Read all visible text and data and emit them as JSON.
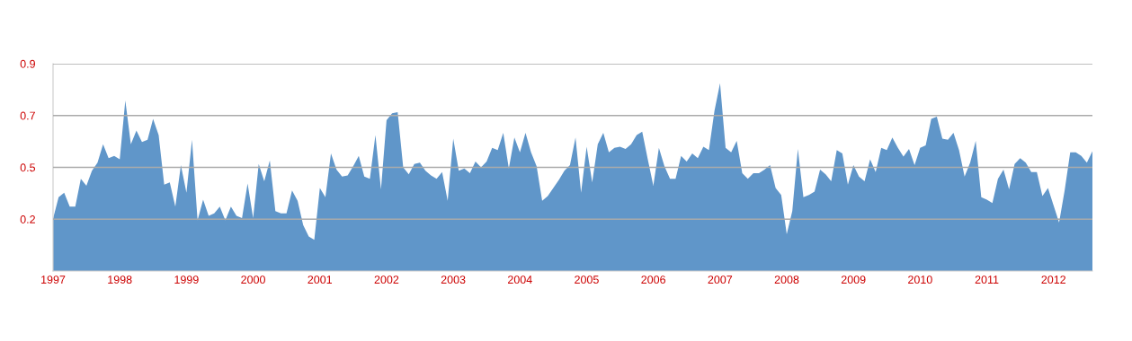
{
  "chart_data": {
    "type": "area",
    "x": [
      "1997-01",
      "1997-02",
      "1997-03",
      "1997-04",
      "1997-05",
      "1997-06",
      "1997-07",
      "1997-08",
      "1997-09",
      "1997-10",
      "1997-11",
      "1997-12",
      "1998-01",
      "1998-02",
      "1998-03",
      "1998-04",
      "1998-05",
      "1998-06",
      "1998-07",
      "1998-08",
      "1998-09",
      "1998-10",
      "1998-11",
      "1998-12",
      "1999-01",
      "1999-02",
      "1999-03",
      "1999-04",
      "1999-05",
      "1999-06",
      "1999-07",
      "1999-08",
      "1999-09",
      "1999-10",
      "1999-11",
      "1999-12",
      "2000-01",
      "2000-02",
      "2000-03",
      "2000-04",
      "2000-05",
      "2000-06",
      "2000-07",
      "2000-08",
      "2000-09",
      "2000-10",
      "2000-11",
      "2000-12",
      "2001-01",
      "2001-02",
      "2001-03",
      "2001-04",
      "2001-05",
      "2001-06",
      "2001-07",
      "2001-08",
      "2001-09",
      "2001-10",
      "2001-11",
      "2001-12",
      "2002-01",
      "2002-02",
      "2002-03",
      "2002-04",
      "2002-05",
      "2002-06",
      "2002-07",
      "2002-08",
      "2002-09",
      "2002-10",
      "2002-11",
      "2002-12",
      "2003-01",
      "2003-02",
      "2003-03",
      "2003-04",
      "2003-05",
      "2003-06",
      "2003-07",
      "2003-08",
      "2003-09",
      "2003-10",
      "2003-11",
      "2003-12",
      "2004-01",
      "2004-02",
      "2004-03",
      "2004-04",
      "2004-05",
      "2004-06",
      "2004-07",
      "2004-08",
      "2004-09",
      "2004-10",
      "2004-11",
      "2004-12",
      "2005-01",
      "2005-02",
      "2005-03",
      "2005-04",
      "2005-05",
      "2005-06",
      "2005-07",
      "2005-08",
      "2005-09",
      "2005-10",
      "2005-11",
      "2005-12",
      "2006-01",
      "2006-02",
      "2006-03",
      "2006-04",
      "2006-05",
      "2006-06",
      "2006-07",
      "2006-08",
      "2006-09",
      "2006-10",
      "2006-11",
      "2006-12",
      "2007-01",
      "2007-02",
      "2007-03",
      "2007-04",
      "2007-05",
      "2007-06",
      "2007-07",
      "2007-08",
      "2007-09",
      "2007-10",
      "2007-11",
      "2007-12",
      "2008-01",
      "2008-02",
      "2008-03",
      "2008-04",
      "2008-05",
      "2008-06",
      "2008-07",
      "2008-08",
      "2008-09",
      "2008-10",
      "2008-11",
      "2008-12",
      "2009-01",
      "2009-02",
      "2009-03",
      "2009-04",
      "2009-05",
      "2009-06",
      "2009-07",
      "2009-08",
      "2009-09",
      "2009-10",
      "2009-11",
      "2009-12",
      "2010-01",
      "2010-02",
      "2010-03",
      "2010-04",
      "2010-05",
      "2010-06",
      "2010-07",
      "2010-08",
      "2010-09",
      "2010-10",
      "2010-11",
      "2010-12",
      "2011-01",
      "2011-02",
      "2011-03",
      "2011-04",
      "2011-05",
      "2011-06",
      "2011-07",
      "2011-08",
      "2011-09",
      "2011-10",
      "2011-11",
      "2011-12",
      "2012-01",
      "2012-02",
      "2012-03",
      "2012-04",
      "2012-05",
      "2012-06",
      "2012-07",
      "2012-08"
    ],
    "series": [
      {
        "color": "#6096c9",
        "values": [
          0.227,
          0.32,
          0.34,
          0.28,
          0.28,
          0.4,
          0.37,
          0.435,
          0.47,
          0.55,
          0.49,
          0.5,
          0.485,
          0.74,
          0.55,
          0.61,
          0.56,
          0.57,
          0.66,
          0.59,
          0.375,
          0.385,
          0.28,
          0.46,
          0.34,
          0.57,
          0.22,
          0.31,
          0.24,
          0.25,
          0.28,
          0.22,
          0.28,
          0.24,
          0.23,
          0.38,
          0.23,
          0.465,
          0.39,
          0.48,
          0.26,
          0.25,
          0.25,
          0.35,
          0.305,
          0.2,
          0.15,
          0.135,
          0.36,
          0.32,
          0.51,
          0.44,
          0.41,
          0.415,
          0.455,
          0.5,
          0.41,
          0.4,
          0.59,
          0.355,
          0.655,
          0.685,
          0.69,
          0.45,
          0.42,
          0.465,
          0.47,
          0.435,
          0.415,
          0.4,
          0.43,
          0.305,
          0.575,
          0.435,
          0.445,
          0.425,
          0.475,
          0.45,
          0.475,
          0.535,
          0.525,
          0.6,
          0.445,
          0.58,
          0.515,
          0.6,
          0.515,
          0.455,
          0.305,
          0.325,
          0.36,
          0.395,
          0.435,
          0.46,
          0.58,
          0.34,
          0.54,
          0.385,
          0.55,
          0.6,
          0.515,
          0.535,
          0.54,
          0.53,
          0.55,
          0.59,
          0.605,
          0.485,
          0.37,
          0.535,
          0.455,
          0.4,
          0.4,
          0.5,
          0.475,
          0.51,
          0.49,
          0.54,
          0.525,
          0.695,
          0.815,
          0.535,
          0.515,
          0.565,
          0.425,
          0.4,
          0.425,
          0.425,
          0.44,
          0.46,
          0.36,
          0.33,
          0.16,
          0.26,
          0.53,
          0.32,
          0.33,
          0.345,
          0.44,
          0.42,
          0.39,
          0.525,
          0.51,
          0.375,
          0.46,
          0.41,
          0.39,
          0.485,
          0.43,
          0.535,
          0.525,
          0.58,
          0.535,
          0.497,
          0.53,
          0.46,
          0.535,
          0.545,
          0.66,
          0.67,
          0.575,
          0.57,
          0.6,
          0.525,
          0.41,
          0.47,
          0.565,
          0.32,
          0.31,
          0.295,
          0.4,
          0.44,
          0.355,
          0.465,
          0.49,
          0.47,
          0.43,
          0.43,
          0.325,
          0.36,
          0.285,
          0.21,
          0.35,
          0.515,
          0.515,
          0.5,
          0.47,
          0.52
        ]
      }
    ],
    "xlim": [
      "1997-01",
      "2012-08"
    ],
    "xticks": [
      {
        "value": "1997-01",
        "label": "1997"
      },
      {
        "value": "1998-01",
        "label": "1998"
      },
      {
        "value": "1999-01",
        "label": "1999"
      },
      {
        "value": "2000-01",
        "label": "2000"
      },
      {
        "value": "2001-01",
        "label": "2001"
      },
      {
        "value": "2002-01",
        "label": "2002"
      },
      {
        "value": "2003-01",
        "label": "2003"
      },
      {
        "value": "2004-01",
        "label": "2004"
      },
      {
        "value": "2005-01",
        "label": "2005"
      },
      {
        "value": "2006-01",
        "label": "2006"
      },
      {
        "value": "2007-01",
        "label": "2007"
      },
      {
        "value": "2008-01",
        "label": "2008"
      },
      {
        "value": "2009-01",
        "label": "2009"
      },
      {
        "value": "2010-01",
        "label": "2010"
      },
      {
        "value": "2011-01",
        "label": "2011"
      },
      {
        "value": "2012-01",
        "label": "2012"
      }
    ],
    "ylim": [
      0,
      0.9
    ],
    "yticks": [
      {
        "value": 0.225,
        "label": "0.2"
      },
      {
        "value": 0.45,
        "label": "0.5"
      },
      {
        "value": 0.675,
        "label": "0.7"
      },
      {
        "value": 0.9,
        "label": "0.9"
      }
    ],
    "grid": "y"
  }
}
